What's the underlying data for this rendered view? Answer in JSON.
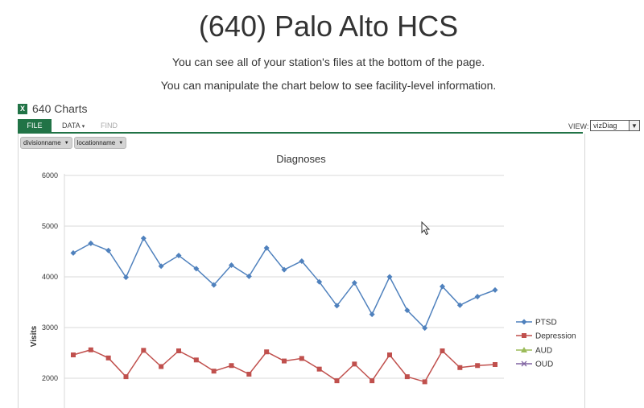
{
  "page": {
    "title": "(640) Palo Alto HCS",
    "line1": "You can see all of your station's files at the bottom of the page.",
    "line2": "You can manipulate the chart below to see facility-level information."
  },
  "workbook": {
    "icon": "excel-icon",
    "icon_glyph": "X",
    "title": "640 Charts",
    "tabs": {
      "file": "FILE",
      "data": "DATA",
      "find": "FIND"
    },
    "view_label": "VIEW:",
    "view_value": "vizDiag",
    "accent": "#217346"
  },
  "filters": [
    {
      "label": "divisionname"
    },
    {
      "label": "locationname"
    }
  ],
  "chart_data": {
    "type": "line",
    "title": "Diagnoses",
    "ylabel": "Visits",
    "xlabel": "",
    "ylim": [
      2000,
      6000
    ],
    "yticks": [
      2000,
      3000,
      4000,
      5000,
      6000
    ],
    "legend_position": "right",
    "grid": true,
    "series": [
      {
        "name": "PTSD",
        "color": "#4f81bd",
        "marker": "diamond",
        "values": [
          4470,
          4660,
          4520,
          3990,
          4760,
          4210,
          4420,
          4160,
          3840,
          4230,
          4010,
          4570,
          4140,
          4310,
          3900,
          3430,
          3880,
          3260,
          4000,
          3340,
          2990,
          3810,
          3440,
          3610,
          3740
        ]
      },
      {
        "name": "Depression",
        "color": "#c0504d",
        "marker": "square",
        "values": [
          2460,
          2560,
          2400,
          2030,
          2550,
          2230,
          2540,
          2360,
          2140,
          2250,
          2080,
          2520,
          2340,
          2390,
          2180,
          1950,
          2280,
          1950,
          2460,
          2030,
          1930,
          2540,
          2210,
          2250,
          2270
        ]
      },
      {
        "name": "AUD",
        "color": "#9bbb59",
        "marker": "triangle",
        "values": []
      },
      {
        "name": "OUD",
        "color": "#8064a2",
        "marker": "x",
        "values": []
      }
    ]
  }
}
